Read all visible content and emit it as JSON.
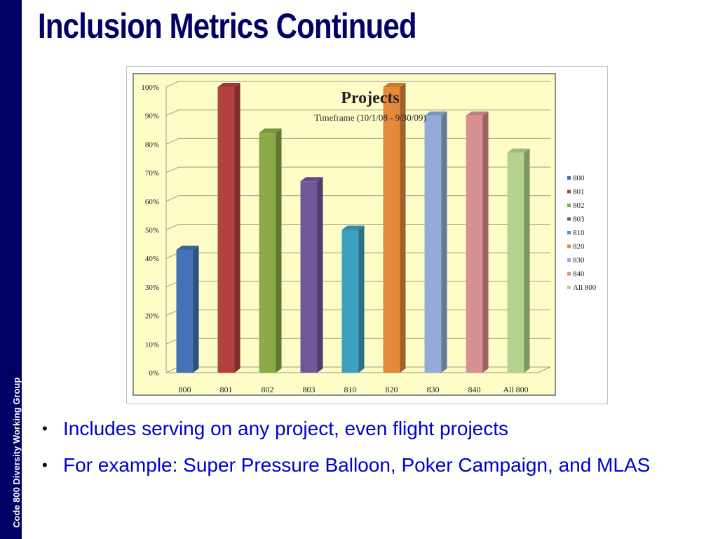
{
  "slide": {
    "title": "Inclusion Metrics Continued",
    "sidebar_text": "Code 800 Diversity Working Group",
    "bullets": [
      "Includes serving on any project, even flight projects",
      "For example: Super Pressure Balloon, Poker Campaign, and MLAS"
    ]
  },
  "colors": {
    "title": "#000066",
    "sidebar": "#000066",
    "bullet_text": "#0000cc",
    "chart_background": "#fefdc8"
  },
  "chart_data": {
    "type": "bar",
    "title": "Projects",
    "subtitle": "Timeframe (10/1/08 - 9/30/09)",
    "categories": [
      "800",
      "801",
      "802",
      "803",
      "810",
      "820",
      "830",
      "840",
      "All 800"
    ],
    "values": [
      43,
      100,
      84,
      67,
      50,
      100,
      90,
      90,
      77
    ],
    "colors": [
      "#4472b4",
      "#b3413f",
      "#8bab48",
      "#71579a",
      "#3ea0bc",
      "#e3893a",
      "#93abd9",
      "#d88f92",
      "#b5d28e"
    ],
    "legend": [
      "800",
      "801",
      "802",
      "803",
      "810",
      "820",
      "830",
      "840",
      "All 800"
    ],
    "legend_position": "right",
    "yticks": [
      "0%",
      "10%",
      "20%",
      "30%",
      "40%",
      "50%",
      "60%",
      "70%",
      "80%",
      "90%",
      "100%"
    ],
    "ylim": [
      0,
      100
    ],
    "grid": true,
    "xlabel": "",
    "ylabel": ""
  }
}
